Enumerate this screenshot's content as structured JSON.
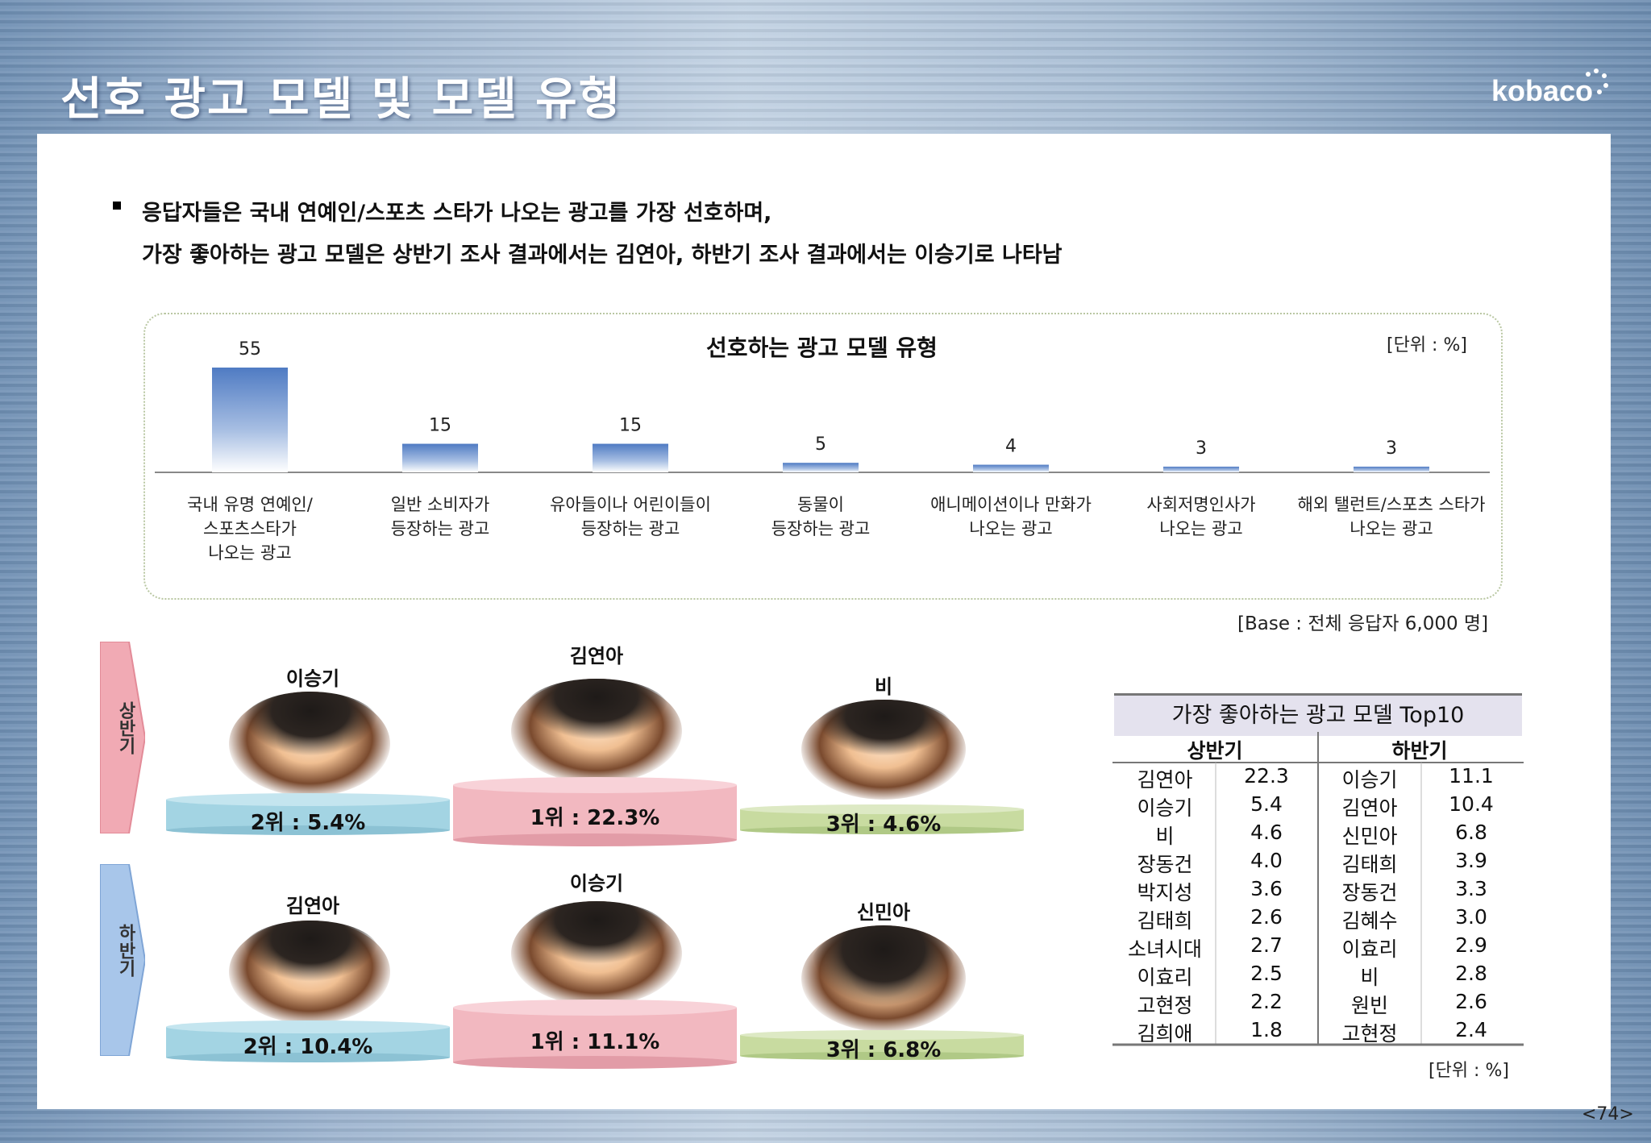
{
  "header": {
    "title": "선호 광고 모델 및 모델 유형",
    "logo": "kobaco"
  },
  "intro": {
    "line1": "응답자들은 국내 연예인/스포츠 스타가 나오는 광고를 가장 선호하며,",
    "line2": "가장 좋아하는 광고 모델은 상반기 조사 결과에서는 김연아, 하반기 조사 결과에서는 이승기로 나타남"
  },
  "chart_data": {
    "type": "bar",
    "title": "선호하는 광고 모델 유형",
    "unit": "[단위 : %]",
    "categories": [
      [
        "국내 유명 연예인/",
        "스포츠스타가",
        "나오는 광고"
      ],
      [
        "일반 소비자가",
        "등장하는 광고"
      ],
      [
        "유아들이나 어린이들이",
        "등장하는 광고"
      ],
      [
        "동물이",
        "등장하는 광고"
      ],
      [
        "애니메이션이나 만화가",
        "나오는 광고"
      ],
      [
        "사회저명인사가",
        "나오는 광고"
      ],
      [
        "해외 탤런트/스포츠 스타가",
        "나오는 광고"
      ]
    ],
    "values": [
      55,
      15,
      15,
      5,
      4,
      3,
      3
    ],
    "ylim": [
      0,
      55
    ],
    "grid": false,
    "base_note": "[Base : 전체 응답자 6,000 명]"
  },
  "podiums": {
    "first_half": {
      "label": "상반기",
      "second": {
        "name": "이승기",
        "rank": "2위 : 5.4%"
      },
      "first": {
        "name": "김연아",
        "rank": "1위 : 22.3%"
      },
      "third": {
        "name": "비",
        "rank": "3위 : 4.6%"
      }
    },
    "second_half": {
      "label": "하반기",
      "second": {
        "name": "김연아",
        "rank": "2위 : 10.4%"
      },
      "first": {
        "name": "이승기",
        "rank": "1위 : 11.1%"
      },
      "third": {
        "name": "신민아",
        "rank": "3위 : 6.8%"
      }
    }
  },
  "top10": {
    "title": "가장 좋아하는 광고 모델 Top10",
    "col_first": "상반기",
    "col_second": "하반기",
    "first_half": [
      [
        "김연아",
        "22.3"
      ],
      [
        "이승기",
        "5.4"
      ],
      [
        "비",
        "4.6"
      ],
      [
        "장동건",
        "4.0"
      ],
      [
        "박지성",
        "3.6"
      ],
      [
        "김태희",
        "2.6"
      ],
      [
        "소녀시대",
        "2.7"
      ],
      [
        "이효리",
        "2.5"
      ],
      [
        "고현정",
        "2.2"
      ],
      [
        "김희애",
        "1.8"
      ]
    ],
    "second_half": [
      [
        "이승기",
        "11.1"
      ],
      [
        "김연아",
        "10.4"
      ],
      [
        "신민아",
        "6.8"
      ],
      [
        "김태희",
        "3.9"
      ],
      [
        "장동건",
        "3.3"
      ],
      [
        "김혜수",
        "3.0"
      ],
      [
        "이효리",
        "2.9"
      ],
      [
        "비",
        "2.8"
      ],
      [
        "원빈",
        "2.6"
      ],
      [
        "고현정",
        "2.4"
      ]
    ],
    "unit": "[단위 : %]"
  },
  "page_number": "<74>",
  "colors": {
    "bar": "#5b84c6",
    "podium_first": "#f2b8c0",
    "podium_second": "#a3d4e3",
    "podium_third": "#c8dba0",
    "tab_first_half": "#f0a8b2",
    "tab_second_half": "#a6c4e6"
  }
}
